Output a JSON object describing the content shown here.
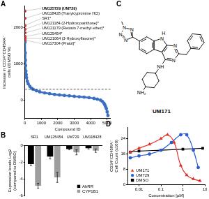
{
  "chart_data": [
    {
      "panel": "A",
      "type": "scatter",
      "x_label": "Compound ID",
      "y_label": [
        "Increase in CD34⁺CD45RA⁻",
        "cells (/DMSO %)"
      ],
      "x": [
        10,
        20,
        30,
        40,
        60,
        80,
        100,
        150,
        200,
        300,
        400,
        500,
        700,
        900,
        1200,
        1500,
        1800,
        2100,
        2400,
        2700,
        3000,
        3300,
        3600,
        3900,
        4200,
        4400,
        4600,
        4700,
        4800,
        4850,
        4900,
        4950,
        5000,
        5050
      ],
      "values": [
        1600,
        1300,
        1100,
        950,
        800,
        700,
        620,
        520,
        450,
        380,
        330,
        300,
        260,
        230,
        200,
        180,
        160,
        145,
        130,
        120,
        105,
        95,
        85,
        70,
        50,
        30,
        0,
        -30,
        -80,
        -120,
        -170,
        -230,
        -320,
        -420
      ],
      "color": "#3b6fc2",
      "marker": "circle",
      "highlighted": {
        "names": [
          "UM125729 (UM729)",
          "UM118428 (Tranylcypromine HCl)",
          "SR1*",
          "UM121184 (2-Hydroxyxanthone)*",
          "UM121179 (Retusin 7-methyl ether)*",
          "UM125454*",
          "UM121064 (3-Hydroxyflavone)*",
          "UM117304 (Pratol)*"
        ],
        "x": [
          1,
          2,
          3,
          4,
          5,
          6,
          7,
          8
        ],
        "values": [
          2450,
          2250,
          2050,
          1950,
          1850,
          1750,
          1700,
          1650
        ],
        "color": "#d62728"
      },
      "threshold": {
        "value": 300,
        "line_style": "dashed"
      },
      "xlim": [
        0,
        5200
      ],
      "xticks": [
        0,
        1000,
        2000,
        3000,
        4000,
        5000
      ],
      "ylim": [
        -500,
        2600
      ],
      "yticks": [
        0,
        1000,
        2000
      ],
      "grid": false
    },
    {
      "panel": "B",
      "type": "bar",
      "y_label": [
        "Expression levels Log2",
        "(compared to DMSO)"
      ],
      "categories": [
        "SR1",
        "UM125454",
        "UM729",
        "UM118428"
      ],
      "series": [
        {
          "name": "AhRR",
          "color": "#000000",
          "values": [
            -2.2,
            -1.3,
            -0.4,
            -0.3
          ],
          "errors": [
            0.2,
            0.3,
            0.1,
            0.1
          ]
        },
        {
          "name": "CYP1B1",
          "color": "#9e9e9e",
          "values": [
            -4.8,
            -3.8,
            -0.8,
            -0.6
          ],
          "errors": [
            0.3,
            0.6,
            0.3,
            0.2
          ]
        }
      ],
      "ylim": [
        -6,
        0
      ],
      "yticks": [
        -6,
        -4,
        -2,
        0
      ],
      "grid": false,
      "legend": "lower right"
    },
    {
      "panel": "D",
      "type": "line",
      "log": "x",
      "x_label": "Concentration [µM]",
      "y_label": [
        "CD34⁺CD45RA⁻",
        "Cell Count (x100)"
      ],
      "series": [
        {
          "name": "UM171",
          "color": "#e0302a",
          "marker": "triangle",
          "x": [
            0.004,
            0.01,
            0.03,
            0.1,
            0.2,
            0.4,
            0.8,
            1.5,
            3,
            6
          ],
          "values": [
            17,
            19,
            21,
            24,
            26,
            22,
            10,
            5,
            3,
            2
          ]
        },
        {
          "name": "UM729",
          "color": "#2a5bd7",
          "marker": "circle",
          "x": [
            0.004,
            0.01,
            0.03,
            0.1,
            0.3,
            0.8,
            1.5,
            3,
            5
          ],
          "values": [
            14,
            15,
            16,
            18,
            22,
            26,
            26,
            18,
            9
          ]
        },
        {
          "name": "DMSO",
          "color": "#000000",
          "marker": "square",
          "x": [
            0.004,
            0.01,
            0.1,
            1,
            8
          ],
          "values": [
            17,
            17.5,
            18,
            18.5,
            19
          ]
        }
      ],
      "xlim": [
        0.003,
        10
      ],
      "xticks": [
        0.01,
        0.1,
        1,
        10
      ],
      "ylim": [
        0,
        30
      ],
      "yticks": [
        0,
        8,
        16,
        24
      ],
      "grid": false,
      "legend": "lower left"
    }
  ],
  "structure": {
    "panel": "C",
    "name": "UM171",
    "atoms": [
      "N",
      "N",
      "N",
      "N",
      "N",
      "H",
      "N",
      "N",
      "NH",
      "NH₂"
    ]
  }
}
